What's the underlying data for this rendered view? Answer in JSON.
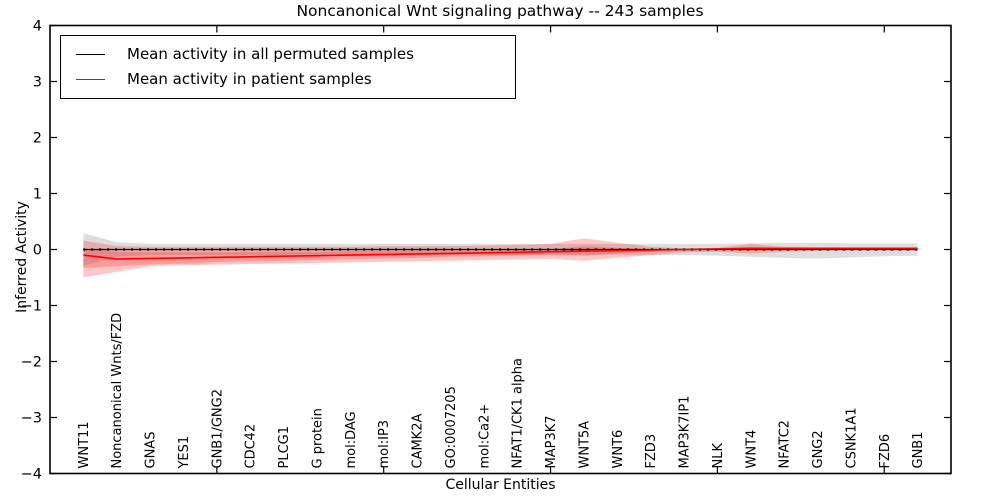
{
  "figure": {
    "background": "#ffffff"
  },
  "legend": {
    "items": [
      {
        "label": "Mean activity in all permuted samples",
        "color": "#000000"
      },
      {
        "label": "Mean activity in patient samples",
        "color": "#ff0000"
      }
    ]
  },
  "chart_data": {
    "type": "line",
    "title": "Noncanonical Wnt signaling pathway -- 243 samples",
    "xlabel": "Cellular Entities",
    "ylabel": "Inferred Activity",
    "ylim": [
      -4,
      4
    ],
    "yticks": [
      -4,
      -3,
      -2,
      -1,
      0,
      1,
      2,
      3,
      4
    ],
    "xtick_mark_indices": [
      4,
      9,
      14,
      19,
      24
    ],
    "grid": false,
    "legend_position": "upper left",
    "axis_color": "#000000",
    "categories": [
      "WNT11",
      "Noncanonical Wnts/FZD",
      "GNAS",
      "YES1",
      "GNB1/GNG2",
      "CDC42",
      "PLCG1",
      "G protein",
      "mol:DAG",
      "mol:IP3",
      "CAMK2A",
      "GO:0007205",
      "mol:Ca2+",
      "NFAT1/CK1 alpha",
      "MAP3K7",
      "WNT5A",
      "WNT6",
      "FZD3",
      "MAP3K7IP1",
      "NLK",
      "WNT4",
      "NFATC2",
      "GNG2",
      "CSNK1A1",
      "FZD6",
      "GNB1"
    ],
    "series": [
      {
        "name": "Mean activity in all permuted samples",
        "color": "#000000",
        "line_style": "solid-with-dot-markers",
        "values": [
          0,
          0,
          0,
          0,
          0,
          0,
          0,
          0,
          0,
          0,
          0,
          0,
          0,
          0,
          0,
          0,
          0,
          0,
          0,
          0,
          0,
          0,
          0,
          0,
          0,
          0
        ],
        "band_upper": [
          0.29,
          0.13,
          0.1,
          0.1,
          0.1,
          0.1,
          0.1,
          0.1,
          0.1,
          0.1,
          0.1,
          0.1,
          0.1,
          0.1,
          0.1,
          0.1,
          0.1,
          0.1,
          0.1,
          0.1,
          0.11,
          0.12,
          0.12,
          0.11,
          0.11,
          0.11
        ],
        "band_lower": [
          -0.29,
          -0.13,
          -0.1,
          -0.1,
          -0.1,
          -0.1,
          -0.1,
          -0.1,
          -0.1,
          -0.1,
          -0.1,
          -0.1,
          -0.1,
          -0.1,
          -0.1,
          -0.1,
          -0.1,
          -0.1,
          -0.1,
          -0.11,
          -0.13,
          -0.15,
          -0.16,
          -0.14,
          -0.12,
          -0.11
        ],
        "band_color": "rgba(0,0,0,0.13)"
      },
      {
        "name": "Mean activity in patient samples",
        "color": "#ff0000",
        "line_style": "solid",
        "values": [
          -0.1,
          -0.17,
          -0.16,
          -0.15,
          -0.14,
          -0.13,
          -0.12,
          -0.11,
          -0.1,
          -0.09,
          -0.08,
          -0.07,
          -0.06,
          -0.05,
          -0.04,
          -0.03,
          -0.02,
          -0.01,
          0.0,
          0.01,
          0.02,
          0.02,
          0.02,
          0.02,
          0.02,
          0.02
        ],
        "band_upper": [
          0.16,
          0.06,
          0.05,
          0.05,
          0.05,
          0.05,
          0.05,
          0.05,
          0.05,
          0.06,
          0.06,
          0.06,
          0.07,
          0.08,
          0.1,
          0.2,
          0.12,
          0.05,
          0.02,
          0.03,
          0.1,
          0.05,
          0.04,
          0.04,
          0.04,
          0.04
        ],
        "band_lower": [
          -0.5,
          -0.4,
          -0.3,
          -0.28,
          -0.27,
          -0.26,
          -0.25,
          -0.24,
          -0.23,
          -0.22,
          -0.21,
          -0.2,
          -0.19,
          -0.18,
          -0.17,
          -0.2,
          -0.15,
          -0.1,
          -0.05,
          -0.04,
          -0.07,
          -0.04,
          -0.02,
          -0.01,
          -0.01,
          -0.01
        ],
        "inner_band_upper": [
          0.02,
          -0.04,
          -0.05,
          -0.05,
          -0.05,
          -0.04,
          -0.04,
          -0.04,
          -0.03,
          -0.03,
          -0.02,
          -0.02,
          -0.02,
          -0.01,
          0.0,
          0.06,
          0.03,
          0.01,
          0.01,
          0.02,
          0.05,
          0.03,
          0.03,
          0.03,
          0.03,
          0.03
        ],
        "inner_band_lower": [
          -0.33,
          -0.3,
          -0.27,
          -0.25,
          -0.23,
          -0.21,
          -0.2,
          -0.19,
          -0.17,
          -0.16,
          -0.15,
          -0.13,
          -0.12,
          -0.11,
          -0.09,
          -0.11,
          -0.07,
          -0.04,
          -0.01,
          0.0,
          -0.02,
          0.0,
          0.01,
          0.01,
          0.01,
          0.01
        ],
        "band_color": "rgba(255,0,0,0.22)"
      }
    ]
  }
}
